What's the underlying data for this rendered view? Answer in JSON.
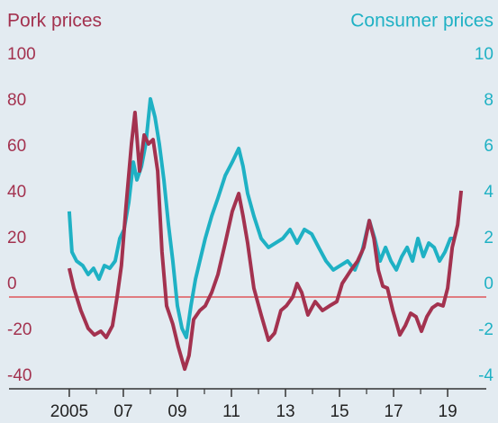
{
  "chart_data": {
    "type": "line",
    "ylabel": "Pork prices",
    "y2label": "Consumer prices",
    "xlim": [
      2002.77,
      2020.43
    ],
    "xticks": [
      {
        "value": 2005,
        "label": "2005"
      },
      {
        "value": 2007,
        "label": "07"
      },
      {
        "value": 2009,
        "label": "09"
      },
      {
        "value": 2011,
        "label": "11"
      },
      {
        "value": 2013,
        "label": "13"
      },
      {
        "value": 2015,
        "label": "15"
      },
      {
        "value": 2017,
        "label": "17"
      },
      {
        "value": 2019,
        "label": "19"
      }
    ],
    "xminorticks": [
      2006,
      2008,
      2010,
      2012,
      2014,
      2016,
      2018
    ],
    "ylim": [
      -40,
      100
    ],
    "yticks": [
      -40,
      -20,
      0,
      20,
      40,
      60,
      80,
      100
    ],
    "y2lim": [
      -4,
      10
    ],
    "y2ticks": [
      -4,
      -2,
      0,
      2,
      4,
      6,
      8,
      10
    ],
    "ycolor": "#a3324f",
    "y2color": "#1fb1c4",
    "zero_line_color": "#e0565a",
    "axis_color": "#333333",
    "series": [
      {
        "name": "Pork prices",
        "color": "#a3324f",
        "x": [
          2005.0,
          2005.17,
          2005.43,
          2005.7,
          2005.93,
          2006.17,
          2006.37,
          2006.6,
          2006.77,
          2006.93,
          2007.1,
          2007.3,
          2007.43,
          2007.6,
          2007.77,
          2007.93,
          2008.1,
          2008.27,
          2008.43,
          2008.6,
          2008.83,
          2009.03,
          2009.27,
          2009.43,
          2009.6,
          2009.83,
          2010.03,
          2010.27,
          2010.5,
          2010.77,
          2011.03,
          2011.27,
          2011.43,
          2011.6,
          2011.83,
          2012.1,
          2012.37,
          2012.6,
          2012.83,
          2013.03,
          2013.27,
          2013.43,
          2013.6,
          2013.83,
          2014.1,
          2014.37,
          2014.63,
          2014.9,
          2015.1,
          2015.43,
          2015.67,
          2015.9,
          2016.1,
          2016.27,
          2016.43,
          2016.6,
          2016.77,
          2016.97,
          2017.23,
          2017.43,
          2017.63,
          2017.83,
          2018.03,
          2018.23,
          2018.43,
          2018.63,
          2018.83,
          2019.0,
          2019.17,
          2019.37,
          2019.5
        ],
        "values": [
          12.5,
          3.9,
          -5.9,
          -13.7,
          -16.5,
          -14.9,
          -17.6,
          -12.5,
          0,
          13.7,
          39.2,
          66.7,
          80.4,
          54.9,
          70.6,
          66.7,
          68.6,
          54.9,
          19.6,
          -3.9,
          -11.8,
          -21.6,
          -31.4,
          -25.5,
          -9.8,
          -5.9,
          -3.9,
          2,
          9.8,
          23.5,
          37.3,
          45.1,
          35.3,
          23.5,
          3.9,
          -7.8,
          -18.8,
          -15.7,
          -5.9,
          -3.9,
          0,
          5.9,
          2,
          -7.8,
          -2,
          -5.9,
          -3.9,
          -2,
          5.9,
          11.8,
          15.7,
          21.6,
          33.3,
          25.5,
          11.8,
          4.7,
          3.9,
          -5.9,
          -16.5,
          -12.5,
          -7.1,
          -8.6,
          -14.9,
          -8.6,
          -4.7,
          -3.1,
          -3.9,
          3.9,
          21.6,
          31.4,
          46.3
        ]
      },
      {
        "name": "Consumer prices",
        "color": "#1fb1c4",
        "axis": "y2",
        "x": [
          2005.0,
          2005.1,
          2005.27,
          2005.5,
          2005.7,
          2005.9,
          2006.1,
          2006.3,
          2006.5,
          2006.7,
          2006.87,
          2007.03,
          2007.2,
          2007.37,
          2007.5,
          2007.67,
          2007.83,
          2008.0,
          2008.17,
          2008.33,
          2008.5,
          2008.67,
          2008.83,
          2009.0,
          2009.17,
          2009.33,
          2009.5,
          2009.67,
          2009.83,
          2010.03,
          2010.27,
          2010.5,
          2010.77,
          2011.03,
          2011.27,
          2011.43,
          2011.6,
          2011.83,
          2012.1,
          2012.37,
          2012.63,
          2012.9,
          2013.17,
          2013.43,
          2013.7,
          2013.97,
          2014.23,
          2014.5,
          2014.77,
          2015.03,
          2015.3,
          2015.57,
          2015.83,
          2016.1,
          2016.3,
          2016.5,
          2016.7,
          2016.9,
          2017.1,
          2017.3,
          2017.5,
          2017.7,
          2017.9,
          2018.1,
          2018.3,
          2018.5,
          2018.7,
          2018.9,
          2019.1,
          2019.27
        ],
        "values": [
          3.73,
          1.96,
          1.57,
          1.37,
          0.98,
          1.25,
          0.78,
          1.37,
          1.25,
          1.57,
          2.55,
          2.94,
          4.12,
          5.88,
          5.1,
          5.69,
          6.67,
          8.63,
          7.84,
          6.67,
          5.1,
          3.14,
          1.57,
          -0.39,
          -1.37,
          -1.76,
          -0.39,
          0.78,
          1.57,
          2.55,
          3.53,
          4.31,
          5.29,
          5.88,
          6.47,
          5.69,
          4.51,
          3.53,
          2.55,
          2.16,
          2.35,
          2.55,
          2.94,
          2.35,
          2.94,
          2.75,
          2.16,
          1.57,
          1.18,
          1.37,
          1.57,
          1.18,
          1.96,
          3.33,
          2.55,
          1.57,
          2.16,
          1.57,
          1.18,
          1.76,
          2.16,
          1.57,
          2.55,
          1.76,
          2.35,
          2.16,
          1.57,
          1.96,
          2.55,
          2.55
        ]
      }
    ]
  }
}
